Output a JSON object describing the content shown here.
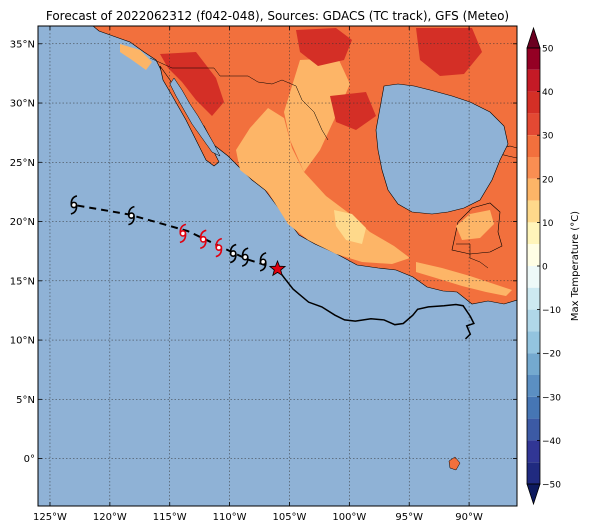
{
  "title": "Forecast of 2022062312 (f042-048), Sources: GDACS (TC track), GFS (Meteo)",
  "map": {
    "lon_range": [
      -126,
      -86
    ],
    "lat_range": [
      -4,
      36.5
    ],
    "xticks": [
      {
        "value": -125,
        "label": "125°W"
      },
      {
        "value": -120,
        "label": "120°W"
      },
      {
        "value": -115,
        "label": "115°W"
      },
      {
        "value": -110,
        "label": "110°W"
      },
      {
        "value": -105,
        "label": "105°W"
      },
      {
        "value": -100,
        "label": "100°W"
      },
      {
        "value": -95,
        "label": "95°W"
      },
      {
        "value": -90,
        "label": "90°W"
      }
    ],
    "yticks": [
      {
        "value": 35,
        "label": "35°N"
      },
      {
        "value": 30,
        "label": "30°N"
      },
      {
        "value": 25,
        "label": "25°N"
      },
      {
        "value": 20,
        "label": "20°N"
      },
      {
        "value": 15,
        "label": "15°N"
      },
      {
        "value": 10,
        "label": "10°N"
      },
      {
        "value": 5,
        "label": "5°N"
      },
      {
        "value": 0,
        "label": "0°"
      }
    ],
    "grid": true,
    "ocean_color": "#8fb2d6"
  },
  "colorbar": {
    "label": "Max Temperature (°C)",
    "ticks": [
      {
        "value": 50,
        "label": "50"
      },
      {
        "value": 40,
        "label": "40"
      },
      {
        "value": 30,
        "label": "30"
      },
      {
        "value": 20,
        "label": "20"
      },
      {
        "value": 10,
        "label": "10"
      },
      {
        "value": 0,
        "label": "0"
      },
      {
        "value": -10,
        "label": "−10"
      },
      {
        "value": -20,
        "label": "−20"
      },
      {
        "value": -30,
        "label": "−30"
      },
      {
        "value": -40,
        "label": "−40"
      },
      {
        "value": -50,
        "label": "−50"
      }
    ],
    "bands": [
      {
        "from": 45,
        "to": 50,
        "color": "#940024"
      },
      {
        "from": 40,
        "to": 45,
        "color": "#c41a26"
      },
      {
        "from": 35,
        "to": 40,
        "color": "#d42f26"
      },
      {
        "from": 30,
        "to": 35,
        "color": "#e34933"
      },
      {
        "from": 25,
        "to": 30,
        "color": "#f2703d"
      },
      {
        "from": 20,
        "to": 25,
        "color": "#f98e52"
      },
      {
        "from": 15,
        "to": 20,
        "color": "#fdb567"
      },
      {
        "from": 10,
        "to": 15,
        "color": "#fed98b"
      },
      {
        "from": 5,
        "to": 10,
        "color": "#fff5ba"
      },
      {
        "from": 0,
        "to": 5,
        "color": "#fffee5"
      },
      {
        "from": -5,
        "to": 0,
        "color": "#eef9f8"
      },
      {
        "from": -10,
        "to": -5,
        "color": "#cde9f1"
      },
      {
        "from": -15,
        "to": -10,
        "color": "#b0d7e8"
      },
      {
        "from": -20,
        "to": -15,
        "color": "#93c4df"
      },
      {
        "from": -25,
        "to": -20,
        "color": "#74a9cf"
      },
      {
        "from": -30,
        "to": -25,
        "color": "#5b8fc2"
      },
      {
        "from": -35,
        "to": -30,
        "color": "#4676b4"
      },
      {
        "from": -40,
        "to": -35,
        "color": "#3c5aa5"
      },
      {
        "from": -45,
        "to": -40,
        "color": "#313695"
      },
      {
        "from": -50,
        "to": -45,
        "color": "#202a80"
      }
    ],
    "over_color": "#6b0020",
    "under_color": "#0d1a5e"
  },
  "track": {
    "start_marker": {
      "lon": -106,
      "lat": 16
    },
    "observed_path": [
      [
        -106,
        16
      ],
      [
        -105.4,
        15.2
      ],
      [
        -104.7,
        14.3
      ],
      [
        -103.4,
        13.2
      ],
      [
        -102.3,
        12.8
      ],
      [
        -101.2,
        12.1
      ],
      [
        -100.4,
        11.7
      ],
      [
        -99.5,
        11.6
      ],
      [
        -98.2,
        11.8
      ],
      [
        -97.1,
        11.7
      ],
      [
        -96.2,
        11.3
      ],
      [
        -95.5,
        11.4
      ],
      [
        -94.7,
        12.1
      ],
      [
        -94.3,
        12.6
      ],
      [
        -93.4,
        12.8
      ],
      [
        -92.1,
        12.9
      ],
      [
        -91.1,
        13.0
      ],
      [
        -90.5,
        12.9
      ],
      [
        -89.9,
        12.0
      ],
      [
        -89.6,
        11.4
      ],
      [
        -90.2,
        11.2
      ],
      [
        -89.9,
        10.5
      ],
      [
        -90.3,
        10.1
      ]
    ],
    "forecast_path": [
      [
        -106,
        16
      ],
      [
        -108.5,
        16.8
      ],
      [
        -113.5,
        19.2
      ],
      [
        -118.4,
        20.6
      ],
      [
        -123,
        21.4
      ]
    ],
    "symbols": [
      {
        "lon": -107.2,
        "lat": 16.6,
        "kind": "depression"
      },
      {
        "lon": -108.7,
        "lat": 17.0,
        "kind": "depression"
      },
      {
        "lon": -109.7,
        "lat": 17.3,
        "kind": "depression"
      },
      {
        "lon": -110.9,
        "lat": 17.8,
        "kind": "storm"
      },
      {
        "lon": -112.2,
        "lat": 18.5,
        "kind": "storm"
      },
      {
        "lon": -113.9,
        "lat": 19.0,
        "kind": "storm"
      },
      {
        "lon": -118.2,
        "lat": 20.5,
        "kind": "depression"
      },
      {
        "lon": -123,
        "lat": 21.4,
        "kind": "depression"
      }
    ]
  }
}
